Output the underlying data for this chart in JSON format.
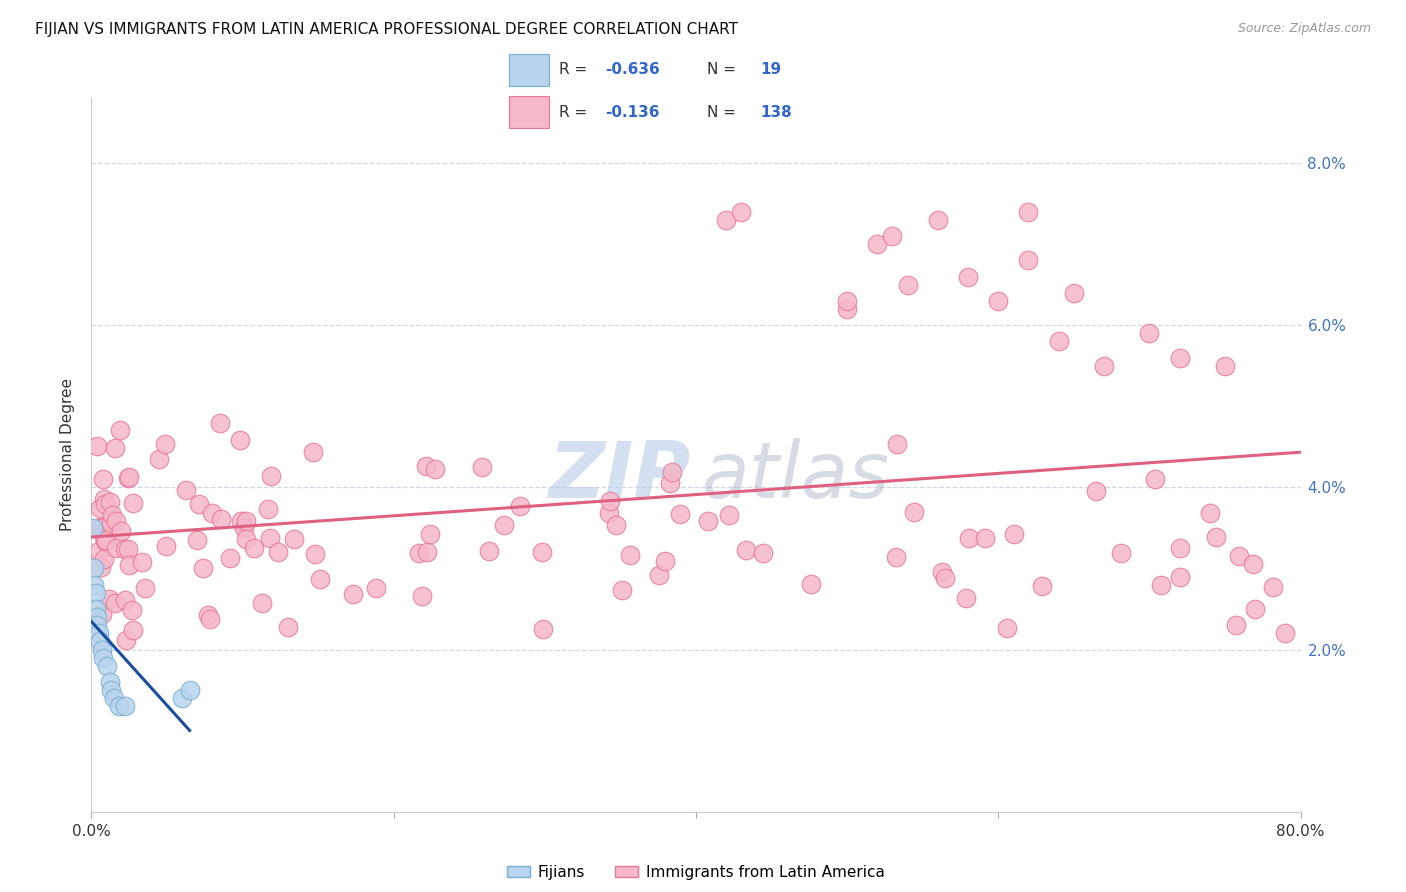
{
  "title": "FIJIAN VS IMMIGRANTS FROM LATIN AMERICA PROFESSIONAL DEGREE CORRELATION CHART",
  "source": "Source: ZipAtlas.com",
  "ylabel": "Professional Degree",
  "ytick_vals": [
    0.02,
    0.04,
    0.06,
    0.08
  ],
  "xmin": 0.0,
  "xmax": 0.8,
  "ymin": 0.0,
  "ymax": 0.088,
  "fijian_color": "#b8d4ec",
  "fijian_edge_color": "#7aafd4",
  "latin_color": "#f5b8c8",
  "latin_edge_color": "#e87898",
  "fijian_line_color": "#1a4d9e",
  "latin_line_color": "#e06080",
  "legend_fijian_label": "Fijians",
  "legend_latin_label": "Immigrants from Latin America",
  "legend_text_color": "#3366cc",
  "watermark_zip_color": "#b8cce8",
  "watermark_atlas_color": "#b8b8c8",
  "background_color": "#ffffff",
  "grid_color": "#d0d8e8",
  "title_fontsize": 11,
  "axis_fontsize": 11,
  "fijian_x": [
    0.001,
    0.002,
    0.002,
    0.003,
    0.003,
    0.004,
    0.004,
    0.005,
    0.006,
    0.007,
    0.008,
    0.01,
    0.012,
    0.013,
    0.015,
    0.018,
    0.022,
    0.06,
    0.065
  ],
  "fijian_y": [
    0.035,
    0.03,
    0.028,
    0.027,
    0.025,
    0.024,
    0.023,
    0.022,
    0.021,
    0.02,
    0.019,
    0.018,
    0.016,
    0.015,
    0.014,
    0.013,
    0.013,
    0.014,
    0.015
  ],
  "latin_x": [
    0.003,
    0.004,
    0.004,
    0.005,
    0.005,
    0.005,
    0.006,
    0.006,
    0.006,
    0.007,
    0.007,
    0.007,
    0.008,
    0.008,
    0.008,
    0.009,
    0.009,
    0.01,
    0.01,
    0.011,
    0.011,
    0.012,
    0.012,
    0.013,
    0.013,
    0.014,
    0.014,
    0.015,
    0.016,
    0.017,
    0.018,
    0.019,
    0.02,
    0.022,
    0.024,
    0.026,
    0.028,
    0.03,
    0.032,
    0.035,
    0.038,
    0.04,
    0.045,
    0.05,
    0.055,
    0.06,
    0.065,
    0.07,
    0.075,
    0.08,
    0.09,
    0.1,
    0.11,
    0.12,
    0.13,
    0.14,
    0.15,
    0.16,
    0.17,
    0.18,
    0.19,
    0.2,
    0.21,
    0.22,
    0.23,
    0.24,
    0.25,
    0.26,
    0.27,
    0.28,
    0.29,
    0.3,
    0.31,
    0.32,
    0.33,
    0.34,
    0.35,
    0.36,
    0.37,
    0.38,
    0.39,
    0.4,
    0.41,
    0.42,
    0.43,
    0.44,
    0.45,
    0.46,
    0.47,
    0.48,
    0.49,
    0.5,
    0.51,
    0.52,
    0.53,
    0.54,
    0.55,
    0.56,
    0.57,
    0.58,
    0.59,
    0.6,
    0.61,
    0.62,
    0.63,
    0.64,
    0.65,
    0.66,
    0.67,
    0.68,
    0.69,
    0.7,
    0.71,
    0.72,
    0.73,
    0.74,
    0.75,
    0.76,
    0.77,
    0.78,
    0.79,
    0.8,
    0.8,
    0.8,
    0.8,
    0.8,
    0.8,
    0.8,
    0.8,
    0.8,
    0.8,
    0.8,
    0.8,
    0.8,
    0.8,
    0.8,
    0.8,
    0.8
  ],
  "latin_y": [
    0.05,
    0.048,
    0.046,
    0.054,
    0.05,
    0.046,
    0.052,
    0.048,
    0.044,
    0.05,
    0.046,
    0.042,
    0.048,
    0.044,
    0.042,
    0.047,
    0.043,
    0.046,
    0.042,
    0.045,
    0.041,
    0.044,
    0.04,
    0.043,
    0.039,
    0.042,
    0.038,
    0.041,
    0.04,
    0.039,
    0.041,
    0.038,
    0.037,
    0.04,
    0.038,
    0.037,
    0.036,
    0.038,
    0.035,
    0.037,
    0.036,
    0.034,
    0.036,
    0.035,
    0.033,
    0.035,
    0.033,
    0.032,
    0.034,
    0.032,
    0.033,
    0.031,
    0.032,
    0.03,
    0.031,
    0.029,
    0.032,
    0.028,
    0.031,
    0.027,
    0.03,
    0.028,
    0.031,
    0.027,
    0.03,
    0.026,
    0.029,
    0.025,
    0.028,
    0.026,
    0.029,
    0.025,
    0.028,
    0.024,
    0.027,
    0.025,
    0.028,
    0.024,
    0.027,
    0.023,
    0.026,
    0.024,
    0.027,
    0.023,
    0.026,
    0.022,
    0.025,
    0.023,
    0.026,
    0.022,
    0.025,
    0.023,
    0.026,
    0.022,
    0.025,
    0.021,
    0.024,
    0.022,
    0.025,
    0.021,
    0.024,
    0.02,
    0.023,
    0.021,
    0.024,
    0.02,
    0.023,
    0.021,
    0.024,
    0.02,
    0.023,
    0.021,
    0.024,
    0.02,
    0.023,
    0.021,
    0.024,
    0.02,
    0.023,
    0.021,
    0.024,
    0.02,
    0.023,
    0.021,
    0.024,
    0.02,
    0.023,
    0.021,
    0.024,
    0.02,
    0.023,
    0.021,
    0.024,
    0.02,
    0.023,
    0.021,
    0.024,
    0.02
  ],
  "latin_outlier_x": [
    0.42,
    0.5,
    0.52,
    0.54,
    0.56,
    0.6,
    0.62,
    0.64
  ],
  "latin_outlier_y": [
    0.073,
    0.062,
    0.07,
    0.065,
    0.073,
    0.063,
    0.068,
    0.058
  ]
}
